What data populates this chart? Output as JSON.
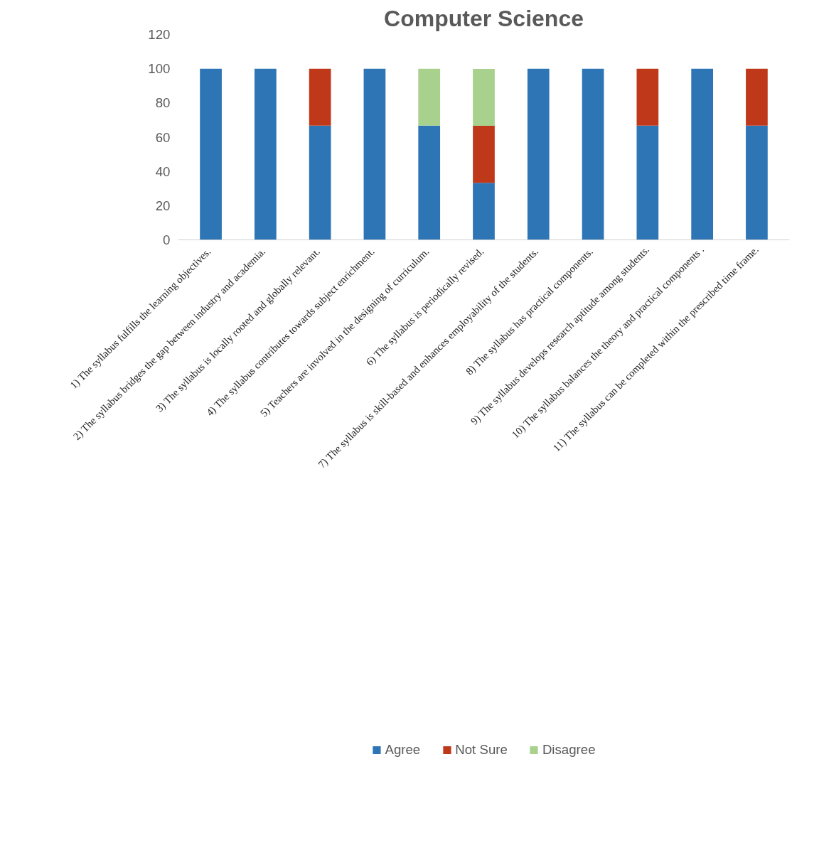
{
  "chart_data": {
    "type": "bar",
    "title": "Computer Science",
    "stacked": true,
    "categories": [
      "1)  The syllabus fulfills the learning objectives.",
      "2)  The syllabus bridges the gap between industry and academia.",
      "3)  The syllabus is locally rooted and globally relevant.",
      "4)  The syllabus contributes towards subject enrichment.",
      "5)  Teachers are involved in the designing of curriculum.",
      "6)  The syllabus is periodically revised.",
      "7)  The syllabus is skill-based and enhances employability of the students.",
      "8)  The syllabus has practical components.",
      "9) The syllabus develops research aptitude among students.",
      "10) The syllabus balances the theory and practical components .",
      "11) The syllabus can be completed within the prescribed time frame."
    ],
    "series": [
      {
        "name": "Agree",
        "color": "#2e75b6",
        "values": [
          100,
          100,
          66.7,
          100,
          66.7,
          33.3,
          100,
          100,
          66.7,
          100,
          66.7
        ]
      },
      {
        "name": "Not Sure",
        "color": "#c0381a",
        "values": [
          0,
          0,
          33.3,
          0,
          0,
          33.3,
          0,
          0,
          33.3,
          0,
          33.3
        ]
      },
      {
        "name": "Disagree",
        "color": "#a9d18e",
        "values": [
          0,
          0,
          0,
          0,
          33.3,
          33.3,
          0,
          0,
          0,
          0,
          0
        ]
      }
    ],
    "ylim": [
      0,
      120
    ],
    "yticks": [
      0,
      20,
      40,
      60,
      80,
      100,
      120
    ],
    "grid": false,
    "legend": "bottom"
  }
}
